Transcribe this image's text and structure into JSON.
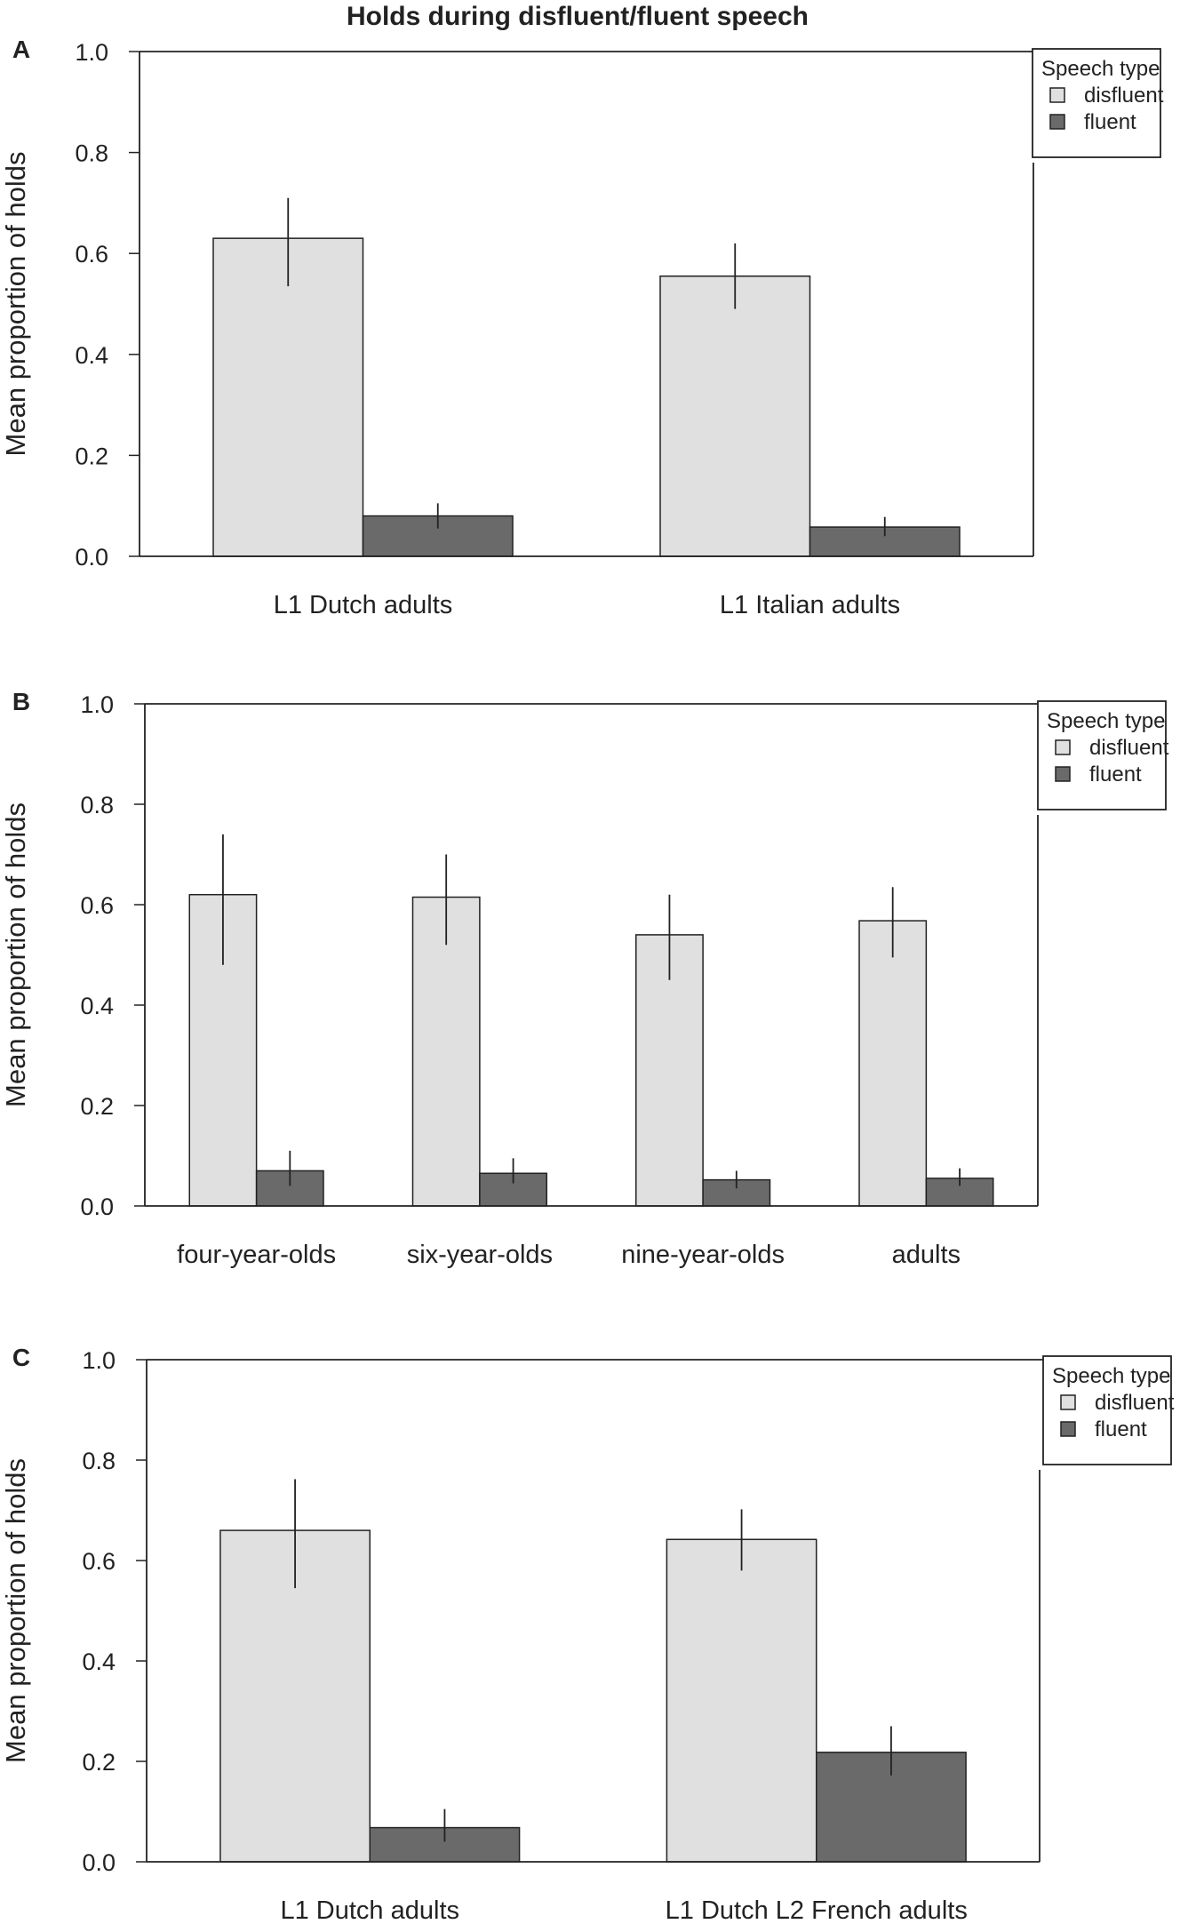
{
  "title": "Holds during disfluent/fluent speech",
  "colors": {
    "disfluent": "#e0e0e0",
    "fluent": "#6a6a6a",
    "axis": "#222222",
    "background": "#ffffff"
  },
  "chart_data": [
    {
      "panel": "A",
      "type": "bar",
      "ylabel": "Mean proportion of holds",
      "ylim": [
        0,
        1
      ],
      "yticks": [
        "0.0",
        "0.2",
        "0.4",
        "0.6",
        "0.8",
        "1.0"
      ],
      "categories": [
        "L1 Dutch adults",
        "L1 Italian adults"
      ],
      "series": [
        {
          "name": "disfluent",
          "values": [
            0.63,
            0.555
          ],
          "err_low": [
            0.535,
            0.49
          ],
          "err_high": [
            0.71,
            0.62
          ]
        },
        {
          "name": "fluent",
          "values": [
            0.08,
            0.058
          ],
          "err_low": [
            0.055,
            0.04
          ],
          "err_high": [
            0.105,
            0.078
          ]
        }
      ],
      "legend": {
        "title": "Speech type",
        "items": [
          "disfluent",
          "fluent"
        ],
        "position": "top-right"
      }
    },
    {
      "panel": "B",
      "type": "bar",
      "ylabel": "Mean proportion of holds",
      "ylim": [
        0,
        1
      ],
      "yticks": [
        "0.0",
        "0.2",
        "0.4",
        "0.6",
        "0.8",
        "1.0"
      ],
      "categories": [
        "four-year-olds",
        "six-year-olds",
        "nine-year-olds",
        "adults"
      ],
      "series": [
        {
          "name": "disfluent",
          "values": [
            0.62,
            0.615,
            0.54,
            0.568
          ],
          "err_low": [
            0.48,
            0.52,
            0.45,
            0.495
          ],
          "err_high": [
            0.74,
            0.7,
            0.62,
            0.635
          ]
        },
        {
          "name": "fluent",
          "values": [
            0.07,
            0.065,
            0.052,
            0.055
          ],
          "err_low": [
            0.04,
            0.045,
            0.035,
            0.04
          ],
          "err_high": [
            0.11,
            0.095,
            0.07,
            0.075
          ]
        }
      ],
      "legend": {
        "title": "Speech type",
        "items": [
          "disfluent",
          "fluent"
        ],
        "position": "top-right"
      }
    },
    {
      "panel": "C",
      "type": "bar",
      "ylabel": "Mean proportion of holds",
      "ylim": [
        0,
        1
      ],
      "yticks": [
        "0.0",
        "0.2",
        "0.4",
        "0.6",
        "0.8",
        "1.0"
      ],
      "categories": [
        "L1 Dutch adults",
        "L1 Dutch L2 French adults"
      ],
      "series": [
        {
          "name": "disfluent",
          "values": [
            0.66,
            0.642
          ],
          "err_low": [
            0.545,
            0.58
          ],
          "err_high": [
            0.762,
            0.702
          ]
        },
        {
          "name": "fluent",
          "values": [
            0.068,
            0.218
          ],
          "err_low": [
            0.04,
            0.172
          ],
          "err_high": [
            0.105,
            0.27
          ]
        }
      ],
      "legend": {
        "title": "Speech type",
        "items": [
          "disfluent",
          "fluent"
        ],
        "position": "top-right"
      }
    }
  ]
}
